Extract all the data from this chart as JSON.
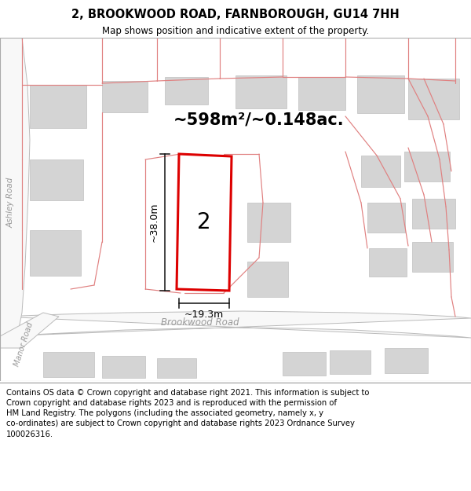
{
  "title": "2, BROOKWOOD ROAD, FARNBOROUGH, GU14 7HH",
  "subtitle": "Map shows position and indicative extent of the property.",
  "area_text": "~598m²/~0.148ac.",
  "number_label": "2",
  "dim_width": "~19.3m",
  "dim_height": "~38.0m",
  "road_label": "Brookwood Road",
  "road_label_ashley": "Ashley Road",
  "road_label_manor": "Manor Road",
  "footer_line1": "Contains OS data © Crown copyright and database right 2021. This information is subject to",
  "footer_line2": "Crown copyright and database rights 2023 and is reproduced with the permission of",
  "footer_line3": "HM Land Registry. The polygons (including the associated geometry, namely x, y",
  "footer_line4": "co-ordinates) are subject to Crown copyright and database rights 2023 Ordnance Survey",
  "footer_line5": "100026316.",
  "map_bg": "#eeeeee",
  "building_color": "#d4d4d4",
  "building_edge": "#c0c0c0",
  "road_fill": "#f8f8f8",
  "road_stroke": "#bbbbbb",
  "pink_line_color": "#e08080",
  "plot_edge_color": "#dd0000",
  "dim_line_color": "#111111",
  "footer_fontsize": 7.2,
  "title_fontsize": 10.5,
  "subtitle_fontsize": 8.5,
  "area_fontsize": 15,
  "number_fontsize": 20,
  "road_label_fontsize": 8.5,
  "dim_fontsize": 9
}
